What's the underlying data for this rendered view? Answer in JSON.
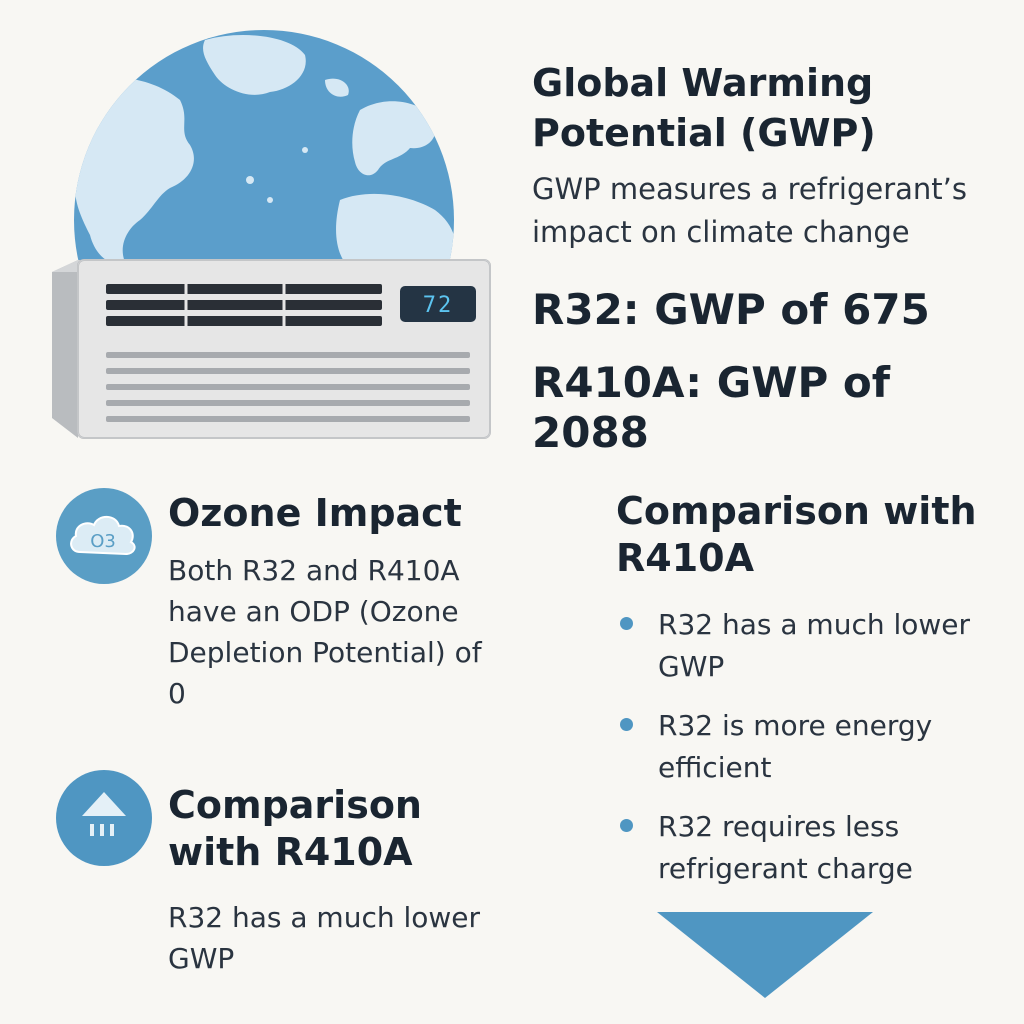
{
  "hero": {
    "thermostat_reading": "72",
    "icons": [
      "globe-icon",
      "air-conditioner-icon"
    ],
    "colors": {
      "ocean": "#5b9ecb",
      "land": "#d6e8f4",
      "unit_body": "#e6e6e6",
      "display": "#243444",
      "display_text": "#5cc4f0"
    }
  },
  "gwp": {
    "title": "Global Warming Potential (GWP)",
    "description": "GWP measures a refrigerant’s impact on climate change",
    "stats": [
      {
        "label": "R32: GWP of 675"
      },
      {
        "label": "R410A: GWP of 2088"
      }
    ]
  },
  "ozone": {
    "icon": "ozone-cloud-icon",
    "icon_label": "O3",
    "title": "Ozone Impact",
    "body": "Both R32 and R410A have an ODP (Ozone Depletion Potential) of 0"
  },
  "comparison_left": {
    "icon": "refrigerant-charge-icon",
    "title": "Comparison with R410A",
    "body": "R32 has a much lower GWP"
  },
  "comparison_right": {
    "title": "Comparison with R410A",
    "bullets": [
      "R32 has a much lower GWP",
      "R32 is more energy efficient",
      "R32 requires less refrigerant charge"
    ],
    "arrow_icon": "down-arrow-icon"
  },
  "colors": {
    "accent": "#4f96c2",
    "text": "#1a2531",
    "background": "#f8f7f3"
  }
}
